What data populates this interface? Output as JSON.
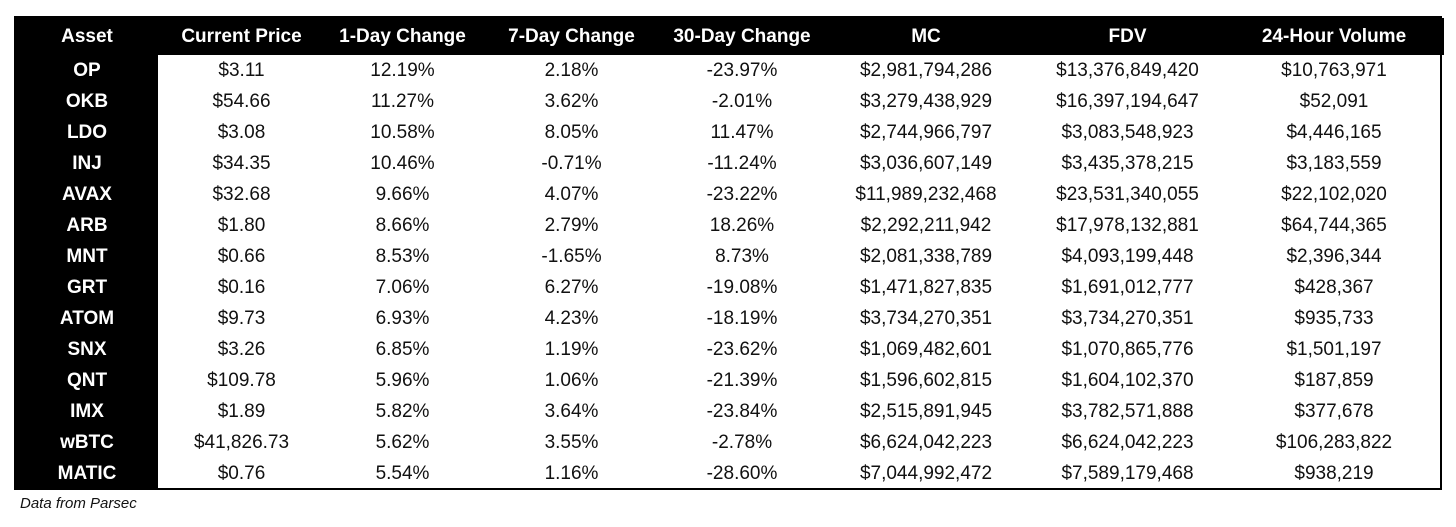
{
  "table": {
    "headers": [
      "Asset",
      "Current Price",
      "1-Day Change",
      "7-Day Change",
      "30-Day Change",
      "MC",
      "FDV",
      "24-Hour Volume"
    ],
    "rows": [
      [
        "OP",
        "$3.11",
        "12.19%",
        "2.18%",
        "-23.97%",
        "$2,981,794,286",
        "$13,376,849,420",
        "$10,763,971"
      ],
      [
        "OKB",
        "$54.66",
        "11.27%",
        "3.62%",
        "-2.01%",
        "$3,279,438,929",
        "$16,397,194,647",
        "$52,091"
      ],
      [
        "LDO",
        "$3.08",
        "10.58%",
        "8.05%",
        "11.47%",
        "$2,744,966,797",
        "$3,083,548,923",
        "$4,446,165"
      ],
      [
        "INJ",
        "$34.35",
        "10.46%",
        "-0.71%",
        "-11.24%",
        "$3,036,607,149",
        "$3,435,378,215",
        "$3,183,559"
      ],
      [
        "AVAX",
        "$32.68",
        "9.66%",
        "4.07%",
        "-23.22%",
        "$11,989,232,468",
        "$23,531,340,055",
        "$22,102,020"
      ],
      [
        "ARB",
        "$1.80",
        "8.66%",
        "2.79%",
        "18.26%",
        "$2,292,211,942",
        "$17,978,132,881",
        "$64,744,365"
      ],
      [
        "MNT",
        "$0.66",
        "8.53%",
        "-1.65%",
        "8.73%",
        "$2,081,338,789",
        "$4,093,199,448",
        "$2,396,344"
      ],
      [
        "GRT",
        "$0.16",
        "7.06%",
        "6.27%",
        "-19.08%",
        "$1,471,827,835",
        "$1,691,012,777",
        "$428,367"
      ],
      [
        "ATOM",
        "$9.73",
        "6.93%",
        "4.23%",
        "-18.19%",
        "$3,734,270,351",
        "$3,734,270,351",
        "$935,733"
      ],
      [
        "SNX",
        "$3.26",
        "6.85%",
        "1.19%",
        "-23.62%",
        "$1,069,482,601",
        "$1,070,865,776",
        "$1,501,197"
      ],
      [
        "QNT",
        "$109.78",
        "5.96%",
        "1.06%",
        "-21.39%",
        "$1,596,602,815",
        "$1,604,102,370",
        "$187,859"
      ],
      [
        "IMX",
        "$1.89",
        "5.82%",
        "3.64%",
        "-23.84%",
        "$2,515,891,945",
        "$3,782,571,888",
        "$377,678"
      ],
      [
        "wBTC",
        "$41,826.73",
        "5.62%",
        "3.55%",
        "-2.78%",
        "$6,624,042,223",
        "$6,624,042,223",
        "$106,283,822"
      ],
      [
        "MATIC",
        "$0.76",
        "5.54%",
        "1.16%",
        "-28.60%",
        "$7,044,992,472",
        "$7,589,179,468",
        "$938,219"
      ]
    ]
  },
  "caption": "Data from Parsec"
}
